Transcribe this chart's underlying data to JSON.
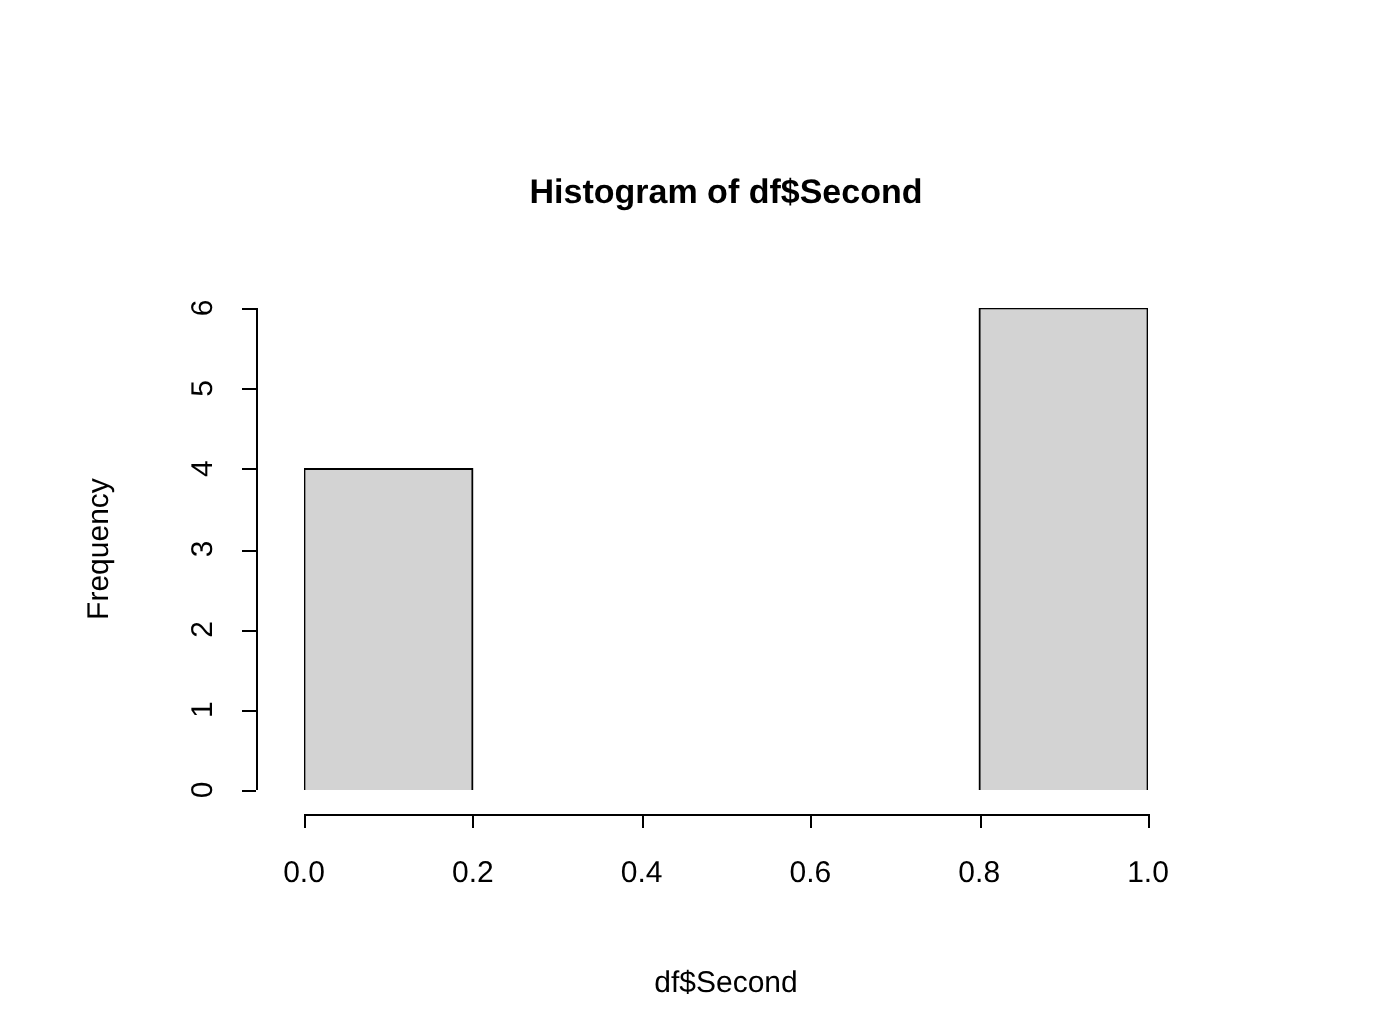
{
  "chart_data": {
    "type": "histogram",
    "title": "Histogram of df$Second",
    "xlabel": "df$Second",
    "ylabel": "Frequency",
    "bins": [
      0,
      0.2,
      0.4,
      0.6,
      0.8,
      1.0
    ],
    "values": [
      4,
      0,
      0,
      0,
      6
    ],
    "color": "#d3d3d3",
    "xlim": [
      0,
      1
    ],
    "ylim": [
      0,
      6
    ],
    "xticks": [
      {
        "value": 0,
        "label": "0.0"
      },
      {
        "value": 0.2,
        "label": "0.2"
      },
      {
        "value": 0.4,
        "label": "0.4"
      },
      {
        "value": 0.6,
        "label": "0.6"
      },
      {
        "value": 0.8,
        "label": "0.8"
      },
      {
        "value": 1,
        "label": "1.0"
      }
    ],
    "yticks": [
      0,
      1,
      2,
      3,
      4,
      5,
      6
    ],
    "legend": false
  }
}
